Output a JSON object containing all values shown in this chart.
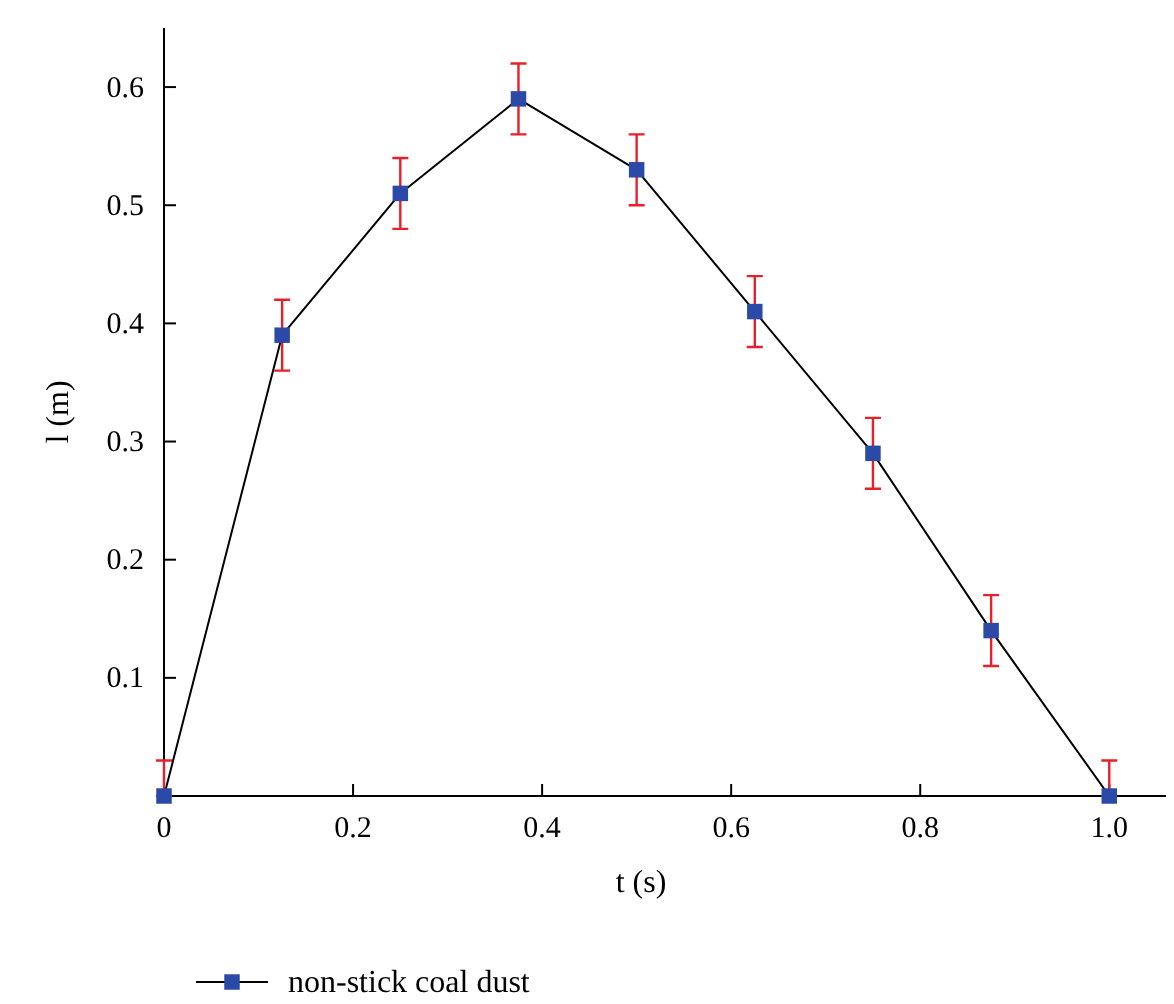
{
  "chart_data": {
    "type": "line",
    "xlabel": "t (s)",
    "ylabel": "l (m)",
    "x": [
      0,
      0.125,
      0.25,
      0.375,
      0.5,
      0.625,
      0.75,
      0.875,
      1.0
    ],
    "series": [
      {
        "name": "non-stick coal dust",
        "color": "#2b4aa8",
        "values": [
          0,
          0.39,
          0.51,
          0.59,
          0.53,
          0.41,
          0.29,
          0.14,
          0
        ],
        "errors": [
          [
            0,
            0.03
          ],
          0.03,
          0.03,
          0.03,
          0.03,
          0.03,
          0.03,
          0.03,
          [
            0,
            0.03
          ]
        ]
      }
    ],
    "xlim": [
      0,
      1.06
    ],
    "ylim": [
      0,
      0.65
    ],
    "xticks": [
      0,
      0.2,
      0.4,
      0.6,
      0.8,
      {
        "value": 1.0,
        "label": "1.0"
      }
    ],
    "yticks": [
      0.1,
      0.2,
      0.3,
      0.4,
      0.5,
      0.6
    ],
    "marker": "square",
    "legend": "bottom",
    "grid": false
  }
}
